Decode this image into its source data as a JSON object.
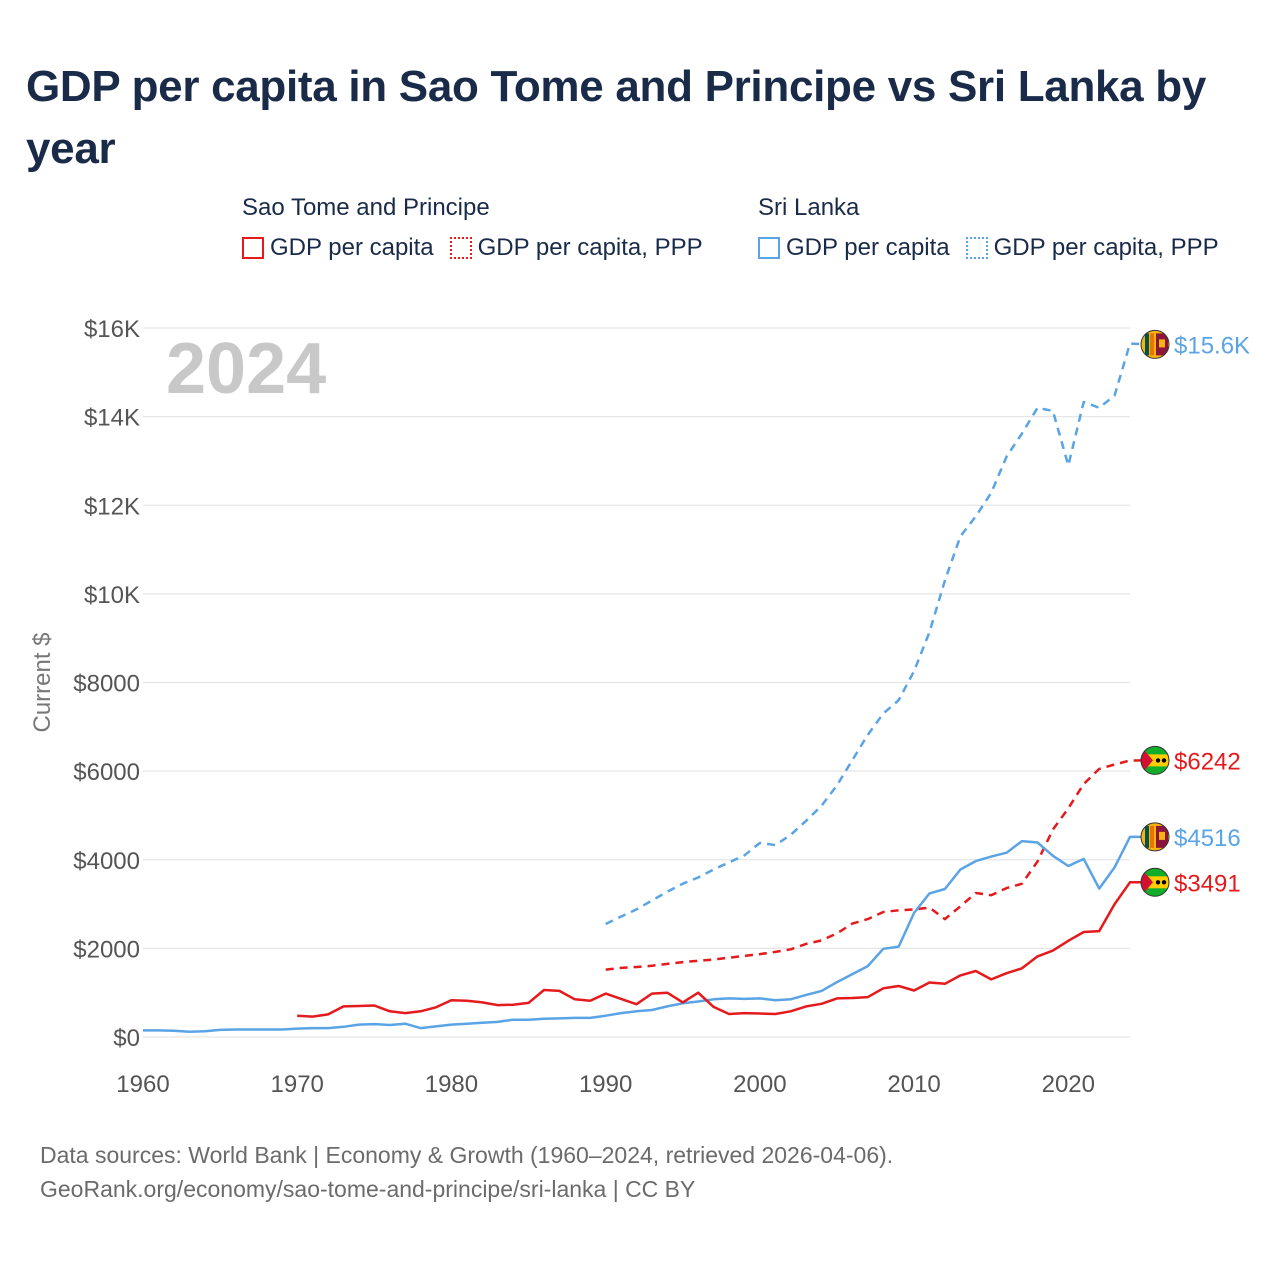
{
  "title": "GDP per capita in Sao Tome and Principe vs Sri Lanka by year",
  "legend": [
    {
      "group": "Sao Tome and Principe",
      "color": "#e41a1c",
      "items": [
        {
          "label": "GDP per capita",
          "style": "solid"
        },
        {
          "label": "GDP per capita, PPP",
          "style": "dotted"
        }
      ]
    },
    {
      "group": "Sri Lanka",
      "color": "#5aa4e6",
      "items": [
        {
          "label": "GDP per capita",
          "style": "solid"
        },
        {
          "label": "GDP per capita, PPP",
          "style": "dotted"
        }
      ]
    }
  ],
  "footer": {
    "line1": "Data sources: World Bank | Economy & Growth (1960–2024, retrieved 2026-04-06).",
    "line2": "GeoRank.org/economy/sao-tome-and-principe/sri-lanka | CC BY"
  },
  "chart_data": {
    "type": "line",
    "title": "GDP per capita in Sao Tome and Principe vs Sri Lanka by year",
    "xlabel": "",
    "ylabel": "Current $",
    "xlim": [
      1960,
      2024
    ],
    "ylim": [
      0,
      16000
    ],
    "xticks": [
      1960,
      1970,
      1980,
      1990,
      2000,
      2010,
      2020
    ],
    "yticks": [
      0,
      2000,
      4000,
      6000,
      8000,
      10000,
      12000,
      14000,
      16000
    ],
    "ytick_labels": [
      "$0",
      "$2000",
      "$4000",
      "$6000",
      "$8000",
      "$10K",
      "$12K",
      "$14K",
      "$16K"
    ],
    "grid": true,
    "year_watermark": "2024",
    "series": [
      {
        "name": "Sri Lanka — GDP per capita, PPP",
        "color": "#5aa4e6",
        "dash": "dashed",
        "x_start": 1990,
        "values": [
          2550,
          2720,
          2880,
          3080,
          3280,
          3460,
          3600,
          3780,
          3940,
          4100,
          4380,
          4330,
          4560,
          4880,
          5220,
          5680,
          6250,
          6820,
          7300,
          7600,
          8260,
          9140,
          10300,
          11300,
          11750,
          12280,
          13100,
          13620,
          14200,
          14130,
          12900,
          14330,
          14200,
          14480,
          15650,
          15630
        ]
      },
      {
        "name": "Sao Tome and Principe — GDP per capita, PPP",
        "color": "#e41a1c",
        "dash": "dashed",
        "x_start": 1990,
        "values": [
          1520,
          1560,
          1580,
          1610,
          1650,
          1690,
          1720,
          1750,
          1790,
          1830,
          1870,
          1920,
          1980,
          2100,
          2180,
          2340,
          2560,
          2660,
          2820,
          2860,
          2880,
          2920,
          2660,
          2950,
          3250,
          3200,
          3360,
          3460,
          3960,
          4680,
          5160,
          5710,
          6050,
          6150,
          6240,
          6242
        ]
      },
      {
        "name": "Sri Lanka — GDP per capita",
        "color": "#5aa4e6",
        "dash": "solid",
        "x_start": 1960,
        "values": [
          150,
          150,
          140,
          120,
          130,
          160,
          170,
          170,
          170,
          170,
          190,
          200,
          200,
          230,
          280,
          290,
          270,
          300,
          200,
          240,
          280,
          300,
          320,
          340,
          390,
          390,
          410,
          420,
          430,
          430,
          480,
          540,
          580,
          610,
          690,
          760,
          800,
          850,
          870,
          860,
          870,
          830,
          850,
          950,
          1040,
          1240,
          1420,
          1600,
          1990,
          2040,
          2800,
          3240,
          3340,
          3780,
          3970,
          4070,
          4160,
          4420,
          4390,
          4090,
          3860,
          4020,
          3350,
          3830,
          4516,
          4516
        ]
      },
      {
        "name": "Sao Tome and Principe — GDP per capita",
        "color": "#e41a1c",
        "dash": "solid",
        "x_start": 1970,
        "values": [
          480,
          460,
          510,
          690,
          700,
          710,
          580,
          540,
          580,
          670,
          830,
          820,
          780,
          720,
          730,
          770,
          1060,
          1040,
          850,
          820,
          980,
          860,
          740,
          980,
          1000,
          780,
          1000,
          680,
          520,
          540,
          530,
          520,
          580,
          690,
          750,
          870,
          880,
          900,
          1100,
          1150,
          1050,
          1230,
          1200,
          1390,
          1490,
          1300,
          1440,
          1550,
          1820,
          1950,
          2170,
          2370,
          2390,
          3000,
          3491,
          3491
        ]
      }
    ],
    "end_labels": [
      {
        "series": "Sri Lanka — GDP per capita, PPP",
        "text": "$15.6K",
        "color": "#5aa4e6",
        "flag": "sri-lanka"
      },
      {
        "series": "Sao Tome and Principe — GDP per capita, PPP",
        "text": "$6242",
        "color": "#e41a1c",
        "flag": "sao-tome"
      },
      {
        "series": "Sri Lanka — GDP per capita",
        "text": "$4516",
        "color": "#5aa4e6",
        "flag": "sri-lanka"
      },
      {
        "series": "Sao Tome and Principe — GDP per capita",
        "text": "$3491",
        "color": "#e41a1c",
        "flag": "sao-tome"
      }
    ]
  }
}
